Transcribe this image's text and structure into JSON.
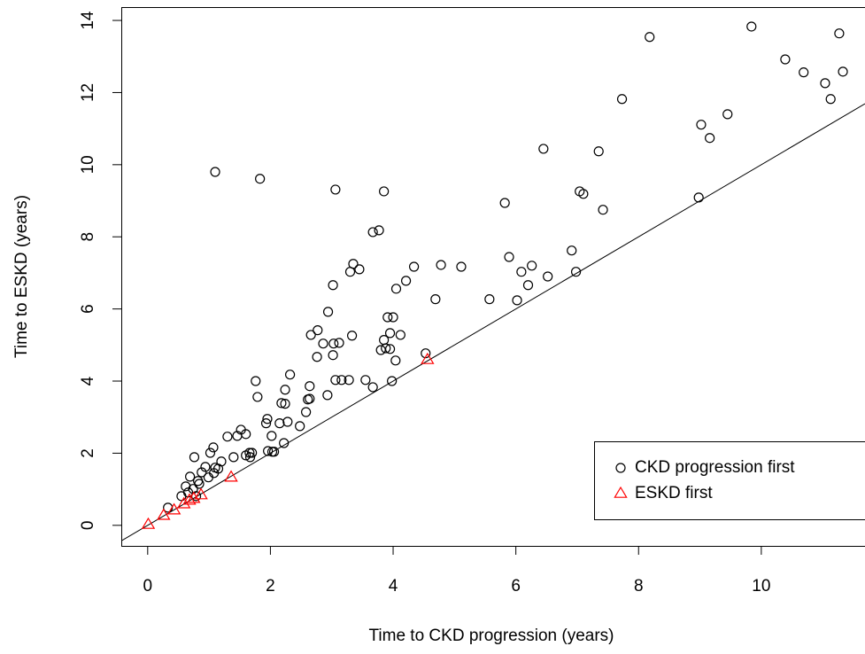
{
  "chart_data": {
    "type": "scatter",
    "x_label": "Time to CKD progression (years)",
    "y_label": "Time to ESKD (years)",
    "xlim": [
      -0.43,
      11.69
    ],
    "ylim": [
      -0.57,
      14.37
    ],
    "xticks": [
      0,
      2,
      4,
      6,
      8,
      10
    ],
    "yticks": [
      0,
      2,
      4,
      6,
      8,
      10,
      12,
      14
    ],
    "grid": false,
    "abline": {
      "intercept": 0,
      "slope": 1,
      "color": "#000000"
    },
    "legend": "bottomright",
    "series": [
      {
        "name": "CKD progression first",
        "color": "#000000",
        "marker": "circle",
        "x": [
          8.18,
          9.84,
          10.39,
          10.69,
          11.04,
          11.13,
          11.27,
          11.33,
          7.73,
          9.02,
          9.16,
          9.45,
          6.45,
          7.35,
          7.04,
          7.1,
          7.42,
          8.98,
          5.82,
          6.91,
          6.98,
          5.89,
          6.26,
          6.09,
          6.52,
          6.2,
          6.02,
          5.57,
          5.11,
          4.78,
          4.69,
          4.34,
          4.21,
          4.05,
          1.1,
          1.83,
          3.06,
          3.85,
          3.67,
          3.77,
          3.35,
          3.45,
          3.3,
          3.02,
          2.94,
          3.33,
          2.66,
          2.77,
          2.86,
          3.03,
          2.76,
          3.02,
          3.12,
          3.91,
          4.0,
          3.95,
          4.12,
          3.85,
          3.8,
          3.88,
          3.95,
          4.04,
          4.53,
          3.98,
          3.55,
          3.28,
          3.16,
          3.06,
          3.67,
          2.32,
          2.64,
          2.64,
          2.61,
          2.58,
          2.93,
          1.76,
          1.79,
          2.24,
          2.18,
          2.24,
          2.28,
          2.48,
          1.95,
          1.93,
          2.15,
          2.02,
          1.96,
          2.03,
          2.06,
          2.22,
          1.52,
          1.6,
          1.46,
          1.3,
          1.66,
          1.7,
          1.6,
          1.67,
          1.4,
          1.07,
          1.02,
          0.76,
          1.2,
          0.94,
          0.88,
          1.1,
          1.15,
          1.08,
          0.99,
          0.82,
          0.69,
          0.84,
          0.62,
          0.74,
          0.66,
          0.55,
          0.33,
          0.79
        ],
        "values": [
          13.54,
          13.83,
          12.92,
          12.56,
          12.26,
          11.82,
          13.64,
          12.58,
          11.82,
          11.11,
          10.74,
          11.4,
          10.44,
          10.37,
          9.26,
          9.19,
          8.75,
          9.09,
          8.94,
          7.62,
          7.03,
          7.44,
          7.2,
          7.03,
          6.9,
          6.66,
          6.24,
          6.27,
          7.17,
          7.22,
          6.27,
          7.17,
          6.78,
          6.56,
          9.8,
          9.61,
          9.31,
          9.26,
          8.13,
          8.18,
          7.25,
          7.1,
          7.03,
          6.66,
          5.92,
          5.26,
          5.28,
          5.41,
          5.04,
          5.04,
          4.67,
          4.72,
          5.06,
          5.77,
          5.77,
          5.33,
          5.28,
          5.14,
          4.86,
          4.91,
          4.89,
          4.57,
          4.77,
          4.0,
          4.03,
          4.03,
          4.03,
          4.03,
          3.83,
          4.18,
          3.86,
          3.51,
          3.49,
          3.14,
          3.61,
          4.0,
          3.56,
          3.76,
          3.39,
          3.37,
          2.87,
          2.75,
          2.95,
          2.83,
          2.83,
          2.48,
          2.06,
          2.04,
          2.04,
          2.28,
          2.65,
          2.53,
          2.48,
          2.46,
          2.01,
          2.01,
          1.94,
          1.89,
          1.89,
          2.16,
          2.01,
          1.89,
          1.77,
          1.62,
          1.47,
          1.6,
          1.57,
          1.45,
          1.33,
          1.23,
          1.35,
          1.15,
          1.08,
          1.01,
          0.91,
          0.81,
          0.49,
          0.81
        ]
      },
      {
        "name": "ESKD first",
        "color": "#ff0000",
        "marker": "triangle",
        "x": [
          0.01,
          0.26,
          0.43,
          0.59,
          0.68,
          0.75,
          0.87,
          1.36,
          4.56
        ],
        "values": [
          0.02,
          0.27,
          0.42,
          0.59,
          0.69,
          0.74,
          0.84,
          1.33,
          4.59
        ]
      }
    ]
  }
}
